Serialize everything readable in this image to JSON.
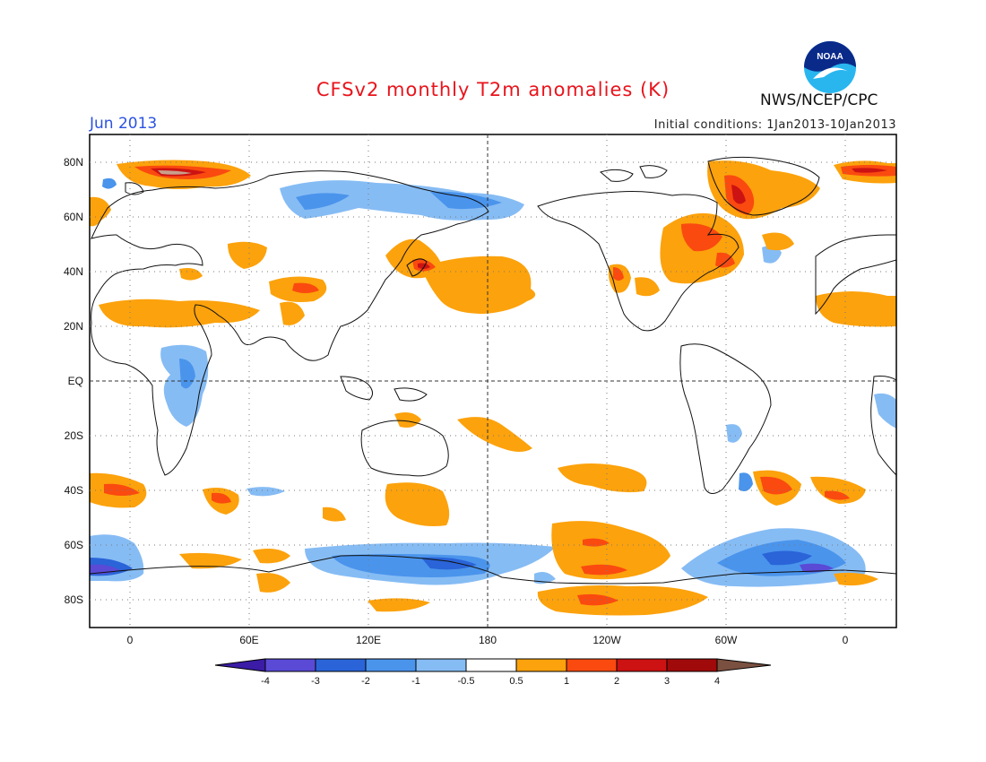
{
  "title": "CFSv2 monthly T2m anomalies (K)",
  "period": "Jun 2013",
  "agency": "NWS/NCEP/CPC",
  "logo_text": "NOAA",
  "initial_conditions": "Initial conditions: 1Jan2013-10Jan2013",
  "lat_labels": [
    "80N",
    "60N",
    "40N",
    "20N",
    "EQ",
    "20S",
    "40S",
    "60S",
    "80S"
  ],
  "lon_labels": [
    "0",
    "60E",
    "120E",
    "180",
    "120W",
    "60W",
    "0"
  ],
  "colorbar": {
    "labels": [
      "-4",
      "-3",
      "-2",
      "-1",
      "-0.5",
      "0.5",
      "1",
      "2",
      "3",
      "4"
    ],
    "colors": [
      "#3b1ca6",
      "#5a4ad6",
      "#2a64d8",
      "#4a94ec",
      "#86bcf4",
      "#ffffff",
      "#fca20c",
      "#fa4a10",
      "#cc1212",
      "#a00a0a",
      "#c8a08c",
      "#7a5040"
    ]
  },
  "colors": {
    "blue_lt": "#86bcf4",
    "blue_md": "#4a94ec",
    "blue_dk": "#2a64d8",
    "blue_vdk": "#5a4ad6",
    "orange": "#fca20c",
    "red": "#fa4a10",
    "dkred": "#cc1212",
    "tan": "#c8a08c"
  }
}
